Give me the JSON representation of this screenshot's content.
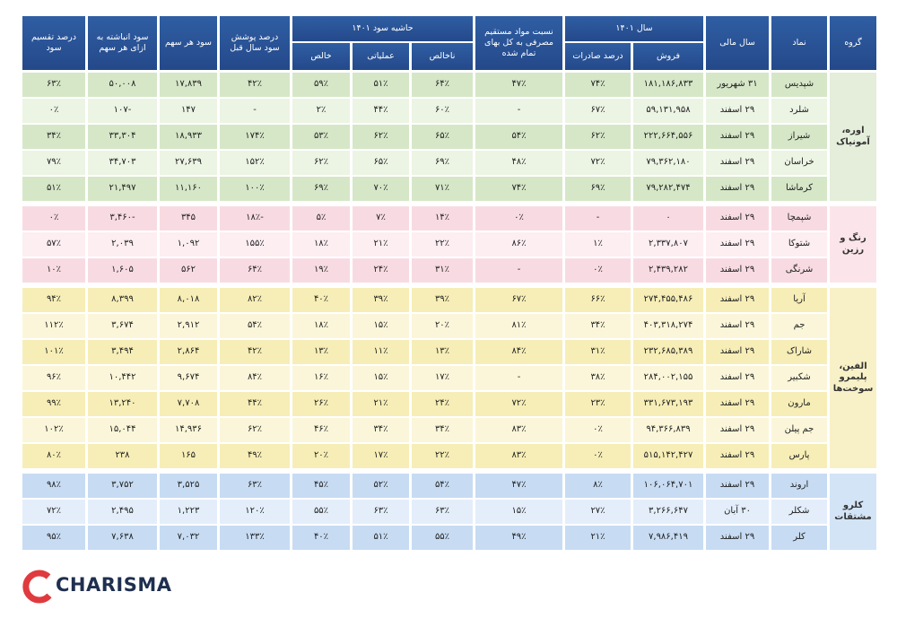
{
  "table": {
    "headers": {
      "group": "گروه",
      "symbol": "نماد",
      "fiscal_year": "سال مالی",
      "year_1401": {
        "title": "سال ۱۴۰۱",
        "sales": "فروش",
        "export": "درصد صادرات"
      },
      "material_ratio": "نسبت مواد مستقیم مصرفی به کل بهای تمام شده",
      "margin": {
        "title": "حاشیه سود ۱۴۰۱",
        "gross": "ناخالص",
        "operating": "عملیاتی",
        "net": "خالص"
      },
      "coverage": "درصد پوشش سود سال قبل",
      "eps": "سود هر سهم",
      "retained": "سود انباشته به ازای هر سهم",
      "dividend": "درصد تقسیم سود"
    },
    "groups": [
      {
        "name": "اوره، آمونیاک",
        "rows": [
          [
            "شپدیس",
            "۳۱ شهریور",
            "۱۸۱,۱۸۶,۸۳۳",
            "۷۴٪",
            "۴۷٪",
            "۶۴٪",
            "۵۱٪",
            "۵۹٪",
            "۴۲٪",
            "۱۷,۸۳۹",
            "۵۰,۰۰۸",
            "۶۳٪"
          ],
          [
            "شلرد",
            "۲۹ اسفند",
            "۵۹,۱۳۱,۹۵۸",
            "۶۷٪",
            "-",
            "۶۰٪",
            "۴۴٪",
            "۲٪",
            "-",
            "۱۴۷",
            "-۱۰۷",
            "۰٪"
          ],
          [
            "شیراز",
            "۲۹ اسفند",
            "۲۲۲,۶۶۴,۵۵۶",
            "۶۲٪",
            "۵۴٪",
            "۶۵٪",
            "۶۲٪",
            "۵۳٪",
            "۱۷۴٪",
            "۱۸,۹۳۳",
            "۳۳,۳۰۴",
            "۳۴٪"
          ],
          [
            "خراسان",
            "۲۹ اسفند",
            "۷۹,۳۶۲,۱۸۰",
            "۷۲٪",
            "۴۸٪",
            "۶۹٪",
            "۶۵٪",
            "۶۲٪",
            "۱۵۲٪",
            "۲۷,۶۳۹",
            "۳۴,۷۰۳",
            "۷۹٪"
          ],
          [
            "کرماشا",
            "۲۹ اسفند",
            "۷۹,۲۸۲,۴۷۴",
            "۶۹٪",
            "۷۴٪",
            "۷۱٪",
            "۷۰٪",
            "۶۹٪",
            "۱۰۰٪",
            "۱۱,۱۶۰",
            "۲۱,۴۹۷",
            "۵۱٪"
          ]
        ]
      },
      {
        "name": "رنگ و رزین",
        "rows": [
          [
            "شپمچا",
            "۲۹ اسفند",
            "۰",
            "-",
            "۰٪",
            "۱۴٪",
            "۷٪",
            "۵٪",
            "-۱۸٪",
            "۳۴۵",
            "-۳,۴۶۰",
            "۰٪"
          ],
          [
            "شتوکا",
            "۲۹ اسفند",
            "۲,۳۳۷,۸۰۷",
            "۱٪",
            "۸۶٪",
            "۲۲٪",
            "۲۱٪",
            "۱۸٪",
            "۱۵۵٪",
            "۱,۰۹۲",
            "۲,۰۳۹",
            "۵۷٪"
          ],
          [
            "شرنگی",
            "۲۹ اسفند",
            "۲,۴۳۹,۲۸۲",
            "۰٪",
            "-",
            "۳۱٪",
            "۲۴٪",
            "۱۹٪",
            "۶۴٪",
            "۵۶۲",
            "۱,۶۰۵",
            "۱۰٪"
          ]
        ]
      },
      {
        "name": "الفین، پلیمرو سوخت‌ها",
        "rows": [
          [
            "آریا",
            "۲۹ اسفند",
            "۲۷۴,۴۵۵,۴۸۶",
            "۶۶٪",
            "۶۷٪",
            "۳۹٪",
            "۳۹٪",
            "۴۰٪",
            "۸۲٪",
            "۸,۰۱۸",
            "۸,۳۹۹",
            "۹۴٪"
          ],
          [
            "جم",
            "۲۹ اسفند",
            "۴۰۳,۳۱۸,۲۷۴",
            "۳۴٪",
            "۸۱٪",
            "۲۰٪",
            "۱۵٪",
            "۱۸٪",
            "۵۴٪",
            "۲,۹۱۲",
            "۳,۶۷۴",
            "۱۱۲٪"
          ],
          [
            "شاراک",
            "۲۹ اسفند",
            "۲۳۲,۶۸۵,۳۸۹",
            "۳۱٪",
            "۸۴٪",
            "۱۳٪",
            "۱۱٪",
            "۱۳٪",
            "۴۲٪",
            "۲,۸۶۴",
            "۳,۴۹۴",
            "۱۰۱٪"
          ],
          [
            "شکبیر",
            "۲۹ اسفند",
            "۲۸۴,۰۰۲,۱۵۵",
            "۳۸٪",
            "-",
            "۱۷٪",
            "۱۵٪",
            "۱۶٪",
            "۸۴٪",
            "۹,۶۷۴",
            "۱۰,۴۴۲",
            "۹۶٪"
          ],
          [
            "مارون",
            "۲۹ اسفند",
            "۳۳۱,۶۷۳,۱۹۳",
            "۲۳٪",
            "۷۲٪",
            "۲۴٪",
            "۲۱٪",
            "۲۶٪",
            "۴۴٪",
            "۷,۷۰۸",
            "۱۳,۲۴۰",
            "۹۹٪"
          ],
          [
            "جم پیلن",
            "۲۹ اسفند",
            "۹۴,۳۶۶,۸۳۹",
            "۰٪",
            "۸۳٪",
            "۳۴٪",
            "۳۴٪",
            "۴۶٪",
            "۶۲٪",
            "۱۴,۹۳۶",
            "۱۵,۰۴۴",
            "۱۰۲٪"
          ],
          [
            "پارس",
            "۲۹ اسفند",
            "۵۱۵,۱۴۲,۴۲۷",
            "۰٪",
            "۸۳٪",
            "۲۲٪",
            "۱۷٪",
            "۲۰٪",
            "۴۹٪",
            "۱۶۵",
            "۲۳۸",
            "۸۰٪"
          ]
        ]
      },
      {
        "name": "کلرو مشتقات",
        "rows": [
          [
            "اروند",
            "۲۹ اسفند",
            "۱۰۶,۰۶۴,۷۰۱",
            "۸٪",
            "۴۷٪",
            "۵۴٪",
            "۵۲٪",
            "۴۵٪",
            "۶۳٪",
            "۳,۵۲۵",
            "۳,۷۵۲",
            "۹۸٪"
          ],
          [
            "شکلر",
            "۳۰ آبان",
            "۳,۲۶۶,۶۴۷",
            "۲۷٪",
            "۱۵٪",
            "۶۳٪",
            "۶۳٪",
            "۵۵٪",
            "۱۲۰٪",
            "۱,۲۲۳",
            "۲,۴۹۵",
            "۷۲٪"
          ],
          [
            "کلر",
            "۲۹ اسفند",
            "۷,۹۸۶,۴۱۹",
            "۲۱٪",
            "۴۹٪",
            "۵۵٪",
            "۵۱٪",
            "۴۰٪",
            "۱۳۳٪",
            "۷,۰۳۲",
            "۷,۶۳۸",
            "۹۵٪"
          ]
        ]
      }
    ]
  },
  "footer": {
    "brand": "CHARISMA"
  }
}
